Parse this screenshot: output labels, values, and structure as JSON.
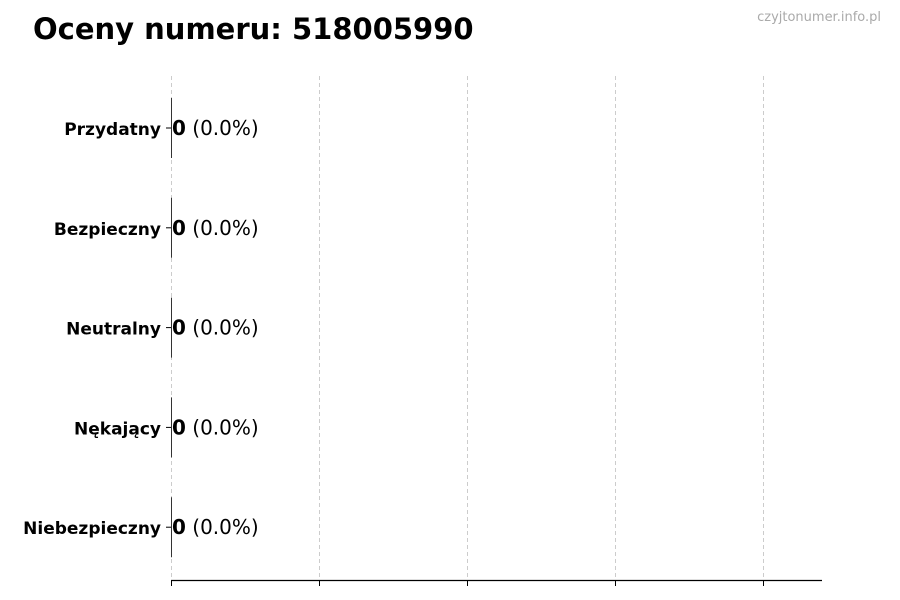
{
  "title": "Oceny numeru: 518005990",
  "watermark": "czyjtonumer.info.pl",
  "chart_data": {
    "type": "bar",
    "orientation": "horizontal",
    "title": "Oceny numeru: 518005990",
    "categories": [
      "Przydatny",
      "Bezpieczny",
      "Neutralny",
      "Nękający",
      "Niebezpieczny"
    ],
    "values": [
      0,
      0,
      0,
      0,
      0
    ],
    "labels": [
      {
        "count": "0",
        "pct": "(0.0%)"
      },
      {
        "count": "0",
        "pct": "(0.0%)"
      },
      {
        "count": "0",
        "pct": "(0.0%)"
      },
      {
        "count": "0",
        "pct": "(0.0%)"
      },
      {
        "count": "0",
        "pct": "(0.0%)"
      }
    ],
    "xlabel": "",
    "ylabel": "",
    "x_tick_count": 5,
    "x_tick_labels_shown": false,
    "grid": "x dashed",
    "bar_color": "#333333"
  }
}
